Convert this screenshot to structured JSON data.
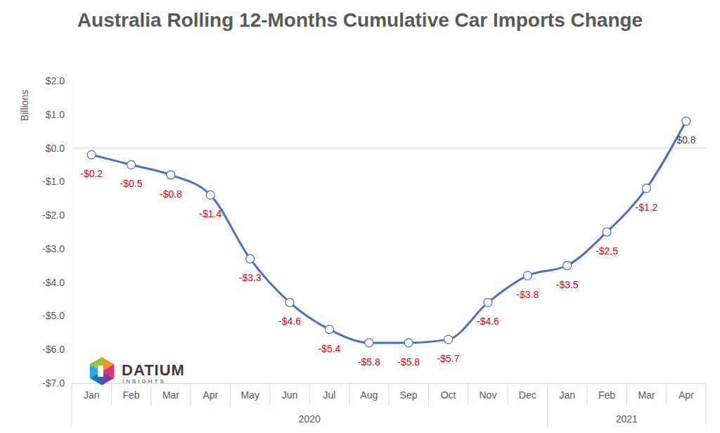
{
  "chart_data": {
    "type": "line",
    "title": "Australia Rolling 12-Months Cumulative Car Imports Change",
    "y_label": "Billions",
    "annotations": [
      "DATIUM",
      "INSIGHTS"
    ],
    "categories": [
      "Jan",
      "Feb",
      "Mar",
      "Apr",
      "May",
      "Jun",
      "Jul",
      "Aug",
      "Sep",
      "Oct",
      "Nov",
      "Dec",
      "Jan",
      "Feb",
      "Mar",
      "Apr"
    ],
    "groups": [
      {
        "label": "2020",
        "count": 12
      },
      {
        "label": "2021",
        "count": 4
      }
    ],
    "series": [
      {
        "name": "Car Imports Change",
        "color": "#4472c4",
        "marker": "circle",
        "values": [
          -0.2,
          -0.5,
          -0.8,
          -1.4,
          -3.3,
          -4.6,
          -5.4,
          -5.8,
          -5.8,
          -5.7,
          -4.6,
          -3.8,
          -3.5,
          -2.5,
          -1.2,
          0.8
        ],
        "value_labels": [
          "-$0.2",
          "-$0.5",
          "-$0.8",
          "-$1.4",
          "-$3.3",
          "-$4.6",
          "-$5.4",
          "-$5.8",
          "-$5.8",
          "-$5.7",
          "-$4.6",
          "-$3.8",
          "-$3.5",
          "-$2.5",
          "-$1.2",
          "$0.8"
        ]
      }
    ],
    "ylim": [
      -7,
      2
    ],
    "yticks": [
      {
        "value": 2,
        "label": "$2.0"
      },
      {
        "value": 1,
        "label": "$1.0"
      },
      {
        "value": 0,
        "label": "$0.0"
      },
      {
        "value": -1,
        "label": "-$1.0"
      },
      {
        "value": -2,
        "label": "-$2.0"
      },
      {
        "value": -3,
        "label": "-$3.0"
      },
      {
        "value": -4,
        "label": "-$4.0"
      },
      {
        "value": -5,
        "label": "-$5.0"
      },
      {
        "value": -6,
        "label": "-$6.0"
      },
      {
        "value": -7,
        "label": "-$7.0"
      }
    ],
    "grid": false,
    "data_labels": true
  }
}
